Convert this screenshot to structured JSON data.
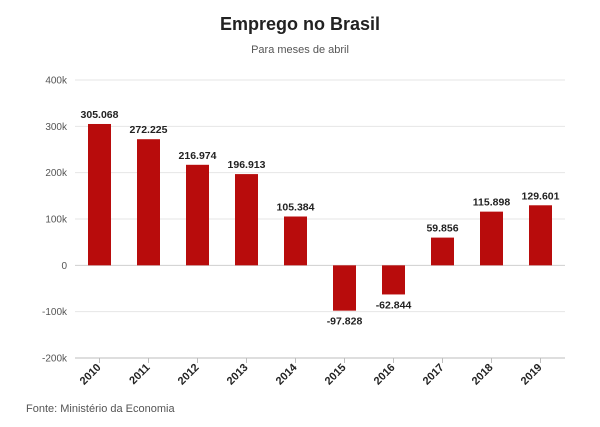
{
  "chart_data": {
    "type": "bar",
    "title": "Emprego no Brasil",
    "subtitle": "Para meses de abril",
    "categories": [
      "2010",
      "2011",
      "2012",
      "2013",
      "2014",
      "2015",
      "2016",
      "2017",
      "2018",
      "2019"
    ],
    "values": [
      305068,
      272225,
      216974,
      196913,
      105384,
      -97828,
      -62844,
      59856,
      115898,
      129601
    ],
    "data_labels": [
      "305.068",
      "272.225",
      "216.974",
      "196.913",
      "105.384",
      "-97.828",
      "-62.844",
      "59.856",
      "115.898",
      "129.601"
    ],
    "ylim": [
      -200000,
      400000
    ],
    "yticks": [
      400000,
      300000,
      200000,
      100000,
      0,
      -100000,
      -200000
    ],
    "ytick_labels": [
      "400k",
      "300k",
      "200k",
      "100k",
      "0",
      "-100k",
      "-200k"
    ],
    "xlabel": "",
    "ylabel": "",
    "grid": true,
    "bar_color": "#b80c0c",
    "source": "Fonte: Ministério da Economia"
  }
}
